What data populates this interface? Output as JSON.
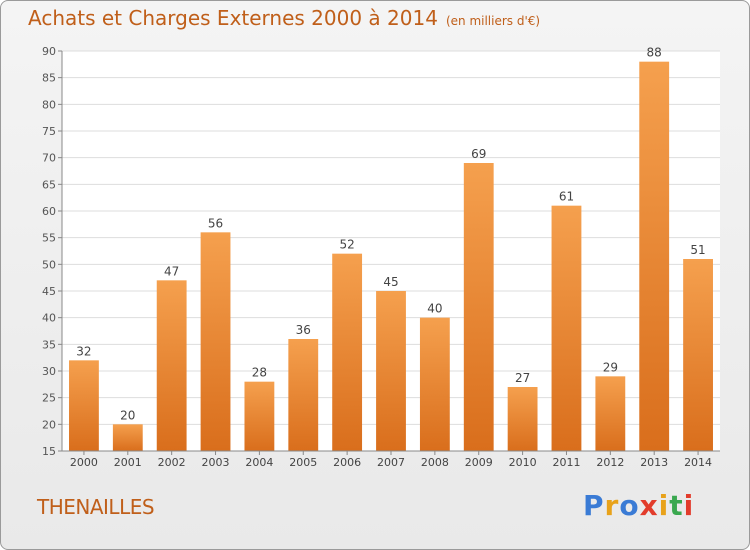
{
  "chart_data": {
    "type": "bar",
    "title": "Achats et Charges Externes 2000 à 2014",
    "subtitle": "(en milliers d'€)",
    "categories": [
      "2000",
      "2001",
      "2002",
      "2003",
      "2004",
      "2005",
      "2006",
      "2007",
      "2008",
      "2009",
      "2010",
      "2011",
      "2012",
      "2013",
      "2014"
    ],
    "values": [
      32,
      20,
      47,
      56,
      28,
      36,
      52,
      45,
      40,
      69,
      27,
      61,
      29,
      88,
      51
    ],
    "ylim": [
      15,
      90
    ],
    "yticks": [
      15,
      20,
      25,
      30,
      35,
      40,
      45,
      50,
      55,
      60,
      65,
      70,
      75,
      80,
      85,
      90
    ],
    "grid": true,
    "bar_color_top": "#f5a04e",
    "bar_color_bottom": "#d96e1c",
    "accent_color": "#c05f1a"
  },
  "commune": "THENAILLES",
  "logo": {
    "letters": [
      "P",
      "r",
      "o",
      "x",
      "i",
      "t",
      "i"
    ],
    "colors": [
      "#3a7bd5",
      "#e8a21a",
      "#3a7bd5",
      "#e23c2b",
      "#e8a21a",
      "#3aa84f",
      "#e23c2b"
    ]
  }
}
